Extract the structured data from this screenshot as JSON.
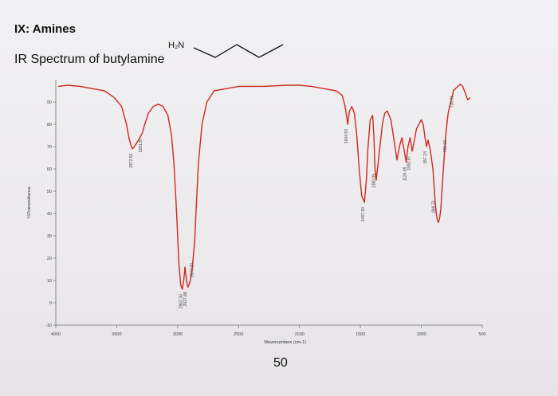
{
  "slide": {
    "title": "IX: Amines",
    "subtitle": "IR Spectrum of butylamine",
    "page_number": "50"
  },
  "molecule": {
    "amine_label": "H₂N"
  },
  "colors": {
    "spectrum_line": "#cc2a1e",
    "axis": "#8a8a8a",
    "annotation": "#444444"
  },
  "chart_data": {
    "type": "line",
    "title": "",
    "xlabel": "Wavenumbers (cm-1)",
    "ylabel": "%Transmittance",
    "xlim": [
      4000,
      500
    ],
    "ylim": [
      -10,
      100
    ],
    "x_reversed": true,
    "x_ticks": [
      "4000",
      "3500",
      "3000",
      "2500",
      "2000",
      "1500",
      "1000",
      "500"
    ],
    "y_ticks": [
      "90",
      "80",
      "70",
      "60",
      "50",
      "40",
      "30",
      "20",
      "10",
      "0",
      "-10"
    ],
    "grid": false,
    "series": [
      {
        "x": [
          3980,
          3900,
          3800,
          3700,
          3600,
          3520,
          3460,
          3420,
          3400,
          3385,
          3372,
          3355,
          3320,
          3291,
          3270,
          3240,
          3200,
          3160,
          3120,
          3080,
          3050,
          3030,
          3010,
          2990,
          2975,
          2962,
          2950,
          2940,
          2927,
          2915,
          2900,
          2885,
          2873,
          2860,
          2850,
          2830,
          2800,
          2760,
          2700,
          2600,
          2500,
          2300,
          2100,
          2000,
          1900,
          1800,
          1700,
          1650,
          1625,
          1604,
          1590,
          1570,
          1550,
          1530,
          1510,
          1490,
          1467,
          1450,
          1440,
          1420,
          1400,
          1390,
          1380,
          1370,
          1350,
          1320,
          1300,
          1280,
          1250,
          1230,
          1200,
          1180,
          1160,
          1140,
          1124,
          1110,
          1092,
          1075,
          1060,
          1040,
          1020,
          1000,
          985,
          970,
          957,
          945,
          925,
          905,
          890,
          878,
          868,
          860,
          850,
          840,
          825,
          800,
          780,
          760,
          740,
          738,
          720,
          700,
          680,
          660,
          640,
          620,
          600
        ],
        "y": [
          97,
          97.5,
          97,
          96,
          95,
          92,
          88,
          80,
          74,
          71,
          69,
          70,
          73,
          76,
          80,
          85,
          88,
          89,
          88,
          84,
          75,
          62,
          42,
          18,
          8,
          6,
          10,
          16,
          10,
          7,
          9,
          13,
          20,
          28,
          40,
          62,
          80,
          90,
          95,
          96,
          97,
          97,
          97.5,
          97.5,
          97,
          96,
          95,
          93,
          88,
          80,
          86,
          88,
          85,
          75,
          60,
          48,
          45,
          56,
          68,
          82,
          84,
          75,
          60,
          55,
          65,
          80,
          85,
          86,
          82,
          75,
          64,
          70,
          74,
          68,
          63,
          70,
          74,
          68,
          72,
          78,
          80,
          82,
          80,
          74,
          70,
          73,
          68,
          60,
          48,
          40,
          37,
          36,
          38,
          42,
          55,
          75,
          85,
          90,
          94,
          95,
          96,
          97,
          98,
          97,
          94,
          91,
          92
        ]
      }
    ],
    "peak_labels": [
      {
        "x": 3373,
        "y": 69,
        "text": "3372.53"
      },
      {
        "x": 3292,
        "y": 76,
        "text": "3291.87"
      },
      {
        "x": 2962,
        "y": 6,
        "text": "2962.30"
      },
      {
        "x": 2927,
        "y": 7,
        "text": "2927.88"
      },
      {
        "x": 2873,
        "y": 20,
        "text": "2873.22"
      },
      {
        "x": 1604,
        "y": 80,
        "text": "1604.53"
      },
      {
        "x": 1467,
        "y": 45,
        "text": "1467.30"
      },
      {
        "x": 1380,
        "y": 60,
        "text": "1380.05"
      },
      {
        "x": 1124,
        "y": 63,
        "text": "1124.69"
      },
      {
        "x": 1092,
        "y": 68,
        "text": "1092.67"
      },
      {
        "x": 957,
        "y": 70,
        "text": "957.24"
      },
      {
        "x": 889,
        "y": 48,
        "text": "888.73"
      },
      {
        "x": 796,
        "y": 75,
        "text": "796.00"
      },
      {
        "x": 738,
        "y": 95,
        "text": "738.01"
      }
    ]
  }
}
